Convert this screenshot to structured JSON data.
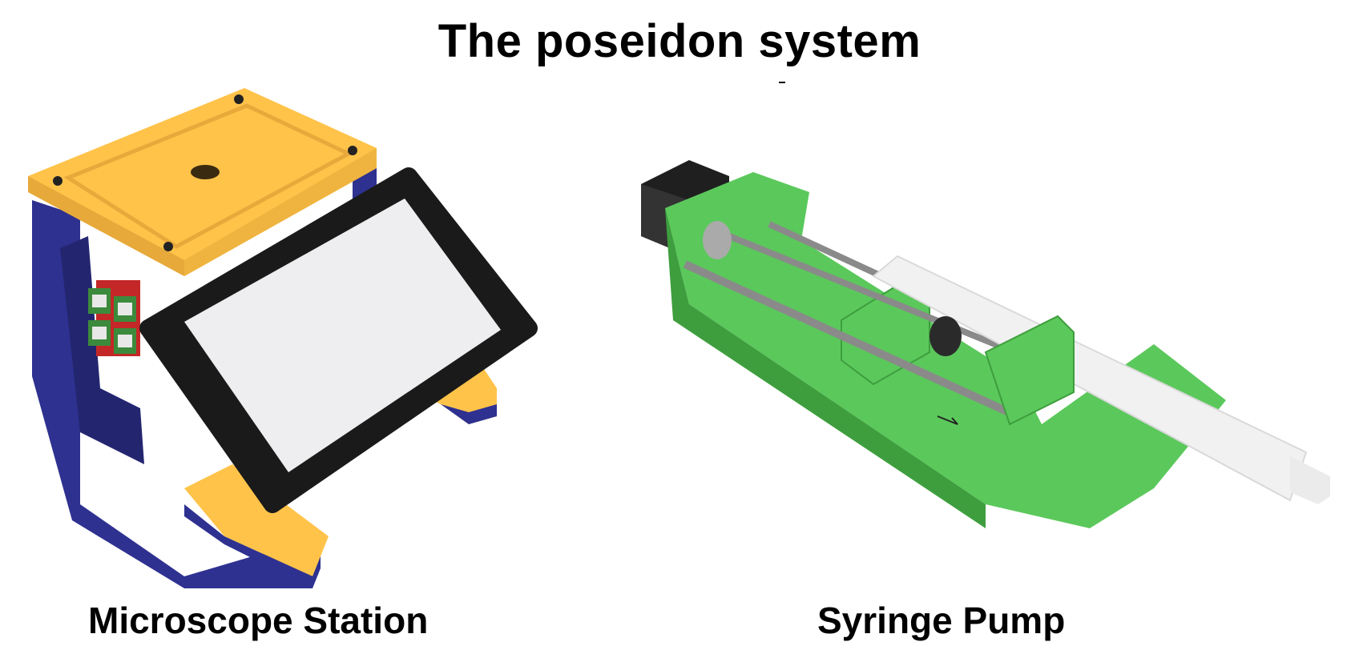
{
  "title": "The poseidon system",
  "devices": [
    {
      "label": "Microscope Station",
      "colors": {
        "frame": "#FFC34A",
        "body": "#2E3190",
        "screen_bezel": "#1a1a1a",
        "screen": "#EEEEF0",
        "pcb": "#3C8A3C"
      }
    },
    {
      "label": "Syringe Pump",
      "colors": {
        "frame": "#5BC85B",
        "motor": "#1f1f1f",
        "rod": "#8A8A8A",
        "syringe": "#F1F1F1"
      }
    }
  ]
}
